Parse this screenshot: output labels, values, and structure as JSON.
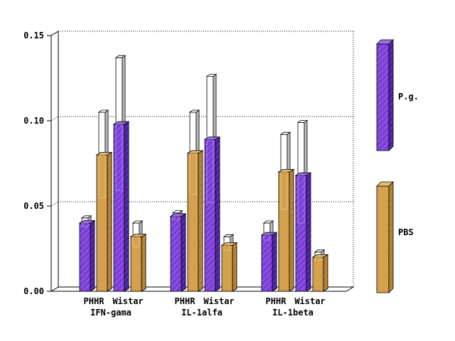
{
  "chart_data": {
    "type": "bar",
    "groups": [
      "IFN-gama",
      "IL-1alfa",
      "IL-1beta"
    ],
    "categories": [
      "PHHR",
      "Wistar"
    ],
    "series": [
      {
        "name": "P.g.",
        "color": "#7b3fd6",
        "values": [
          [
            0.04,
            0.098
          ],
          [
            0.044,
            0.089
          ],
          [
            0.033,
            0.068
          ]
        ],
        "error_upper": [
          [
            0.043,
            0.137
          ],
          [
            0.046,
            0.126
          ],
          [
            0.04,
            0.099
          ]
        ],
        "error_lower": [
          [
            0.038,
            0.059
          ],
          [
            0.042,
            0.052
          ],
          [
            0.03,
            0.04
          ]
        ]
      },
      {
        "name": "PBS",
        "color": "#d4a24e",
        "values": [
          [
            0.08,
            0.032
          ],
          [
            0.081,
            0.027
          ],
          [
            0.07,
            0.02
          ]
        ],
        "error_upper": [
          [
            0.105,
            0.04
          ],
          [
            0.105,
            0.032
          ],
          [
            0.092,
            0.023
          ]
        ],
        "error_lower": [
          [
            0.055,
            0.026
          ],
          [
            0.057,
            0.024
          ],
          [
            0.048,
            0.018
          ]
        ]
      }
    ],
    "ylim": [
      0,
      0.15
    ],
    "yticks": [
      "0.00",
      "0.05",
      "0.10",
      "0.15"
    ],
    "grid": true,
    "legend_position": "right"
  }
}
